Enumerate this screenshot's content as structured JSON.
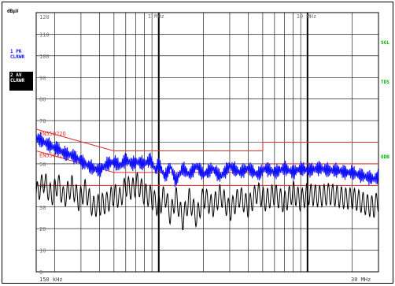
{
  "left_panel": {
    "unit": "dBµV",
    "trace1_number": "1 PK",
    "trace1_mode": "CLRWR",
    "trace2_number": "2 AV",
    "trace2_mode": "CLRWR"
  },
  "right_flags": {
    "sgl": "SGL",
    "tds": "TDS",
    "sixdb": "6DB"
  },
  "x_axis": {
    "start_label": "150 kHz",
    "stop_label": "30 MHz",
    "marker_labels": [
      {
        "label": "1 MHz",
        "freq_mhz": 1
      },
      {
        "label": "10 MHz",
        "freq_mhz": 10
      }
    ]
  },
  "y_axis": {
    "ticks": [
      "120",
      "110",
      "100",
      "90",
      "80",
      "70",
      "60",
      "50",
      "40",
      "30",
      "20",
      "10",
      "0"
    ]
  },
  "limit_labels": [
    "EN55022Q",
    "EN55022A"
  ],
  "colors": {
    "trace1": "#1010ff",
    "trace2": "#000000",
    "limit": "#e03030",
    "grid": "#000000",
    "flags": "#00b400"
  },
  "chart_data": {
    "type": "line",
    "xscale": "log",
    "xlim_mhz": [
      0.15,
      30
    ],
    "ylim": [
      0,
      120
    ],
    "series": [
      {
        "name": "1 PK",
        "color": "#1010ff",
        "x": [
          0.15,
          0.17,
          0.19,
          0.21,
          0.23,
          0.26,
          0.29,
          0.32,
          0.36,
          0.4,
          0.45,
          0.5,
          0.55,
          0.6,
          0.66,
          0.72,
          0.8,
          0.88,
          0.95,
          1.0,
          1.1,
          1.2,
          1.3,
          1.45,
          1.6,
          1.8,
          2.0,
          2.3,
          2.6,
          3.0,
          3.5,
          4.0,
          4.6,
          5.2,
          6.0,
          7.0,
          8.0,
          9.0,
          10,
          12,
          14,
          16,
          18,
          20,
          22,
          25,
          28,
          30
        ],
        "y": [
          62,
          60,
          58,
          57,
          55,
          54,
          52,
          50,
          48,
          47,
          50,
          51,
          49,
          52,
          50,
          51,
          50,
          52,
          47,
          50,
          44,
          49,
          42,
          48,
          45,
          49,
          45,
          48,
          44,
          49,
          46,
          48,
          45,
          48,
          46,
          48,
          46,
          48,
          47,
          48,
          47,
          47,
          46,
          46,
          45,
          44,
          43,
          44
        ]
      },
      {
        "name": "2 AV",
        "color": "#000000",
        "x": [
          0.15,
          0.17,
          0.19,
          0.21,
          0.23,
          0.26,
          0.29,
          0.32,
          0.36,
          0.4,
          0.45,
          0.5,
          0.55,
          0.6,
          0.66,
          0.72,
          0.8,
          0.88,
          0.95,
          1.0,
          1.1,
          1.2,
          1.3,
          1.45,
          1.6,
          1.8,
          2.0,
          2.3,
          2.6,
          3.0,
          3.5,
          4.0,
          4.6,
          5.2,
          6.0,
          7.0,
          8.0,
          9.0,
          10,
          12,
          14,
          16,
          18,
          20,
          22,
          25,
          28,
          30
        ],
        "y": [
          36,
          42,
          35,
          41,
          34,
          40,
          33,
          38,
          30,
          31,
          32,
          36,
          34,
          40,
          38,
          41,
          36,
          35,
          32,
          30,
          36,
          26,
          35,
          24,
          34,
          25,
          35,
          30,
          36,
          28,
          35,
          30,
          37,
          33,
          36,
          32,
          37,
          33,
          36,
          35,
          36,
          35,
          34,
          34,
          33,
          31,
          30,
          33
        ]
      }
    ],
    "limit_lines": [
      {
        "name": "EN55022Q",
        "x": [
          0.15,
          0.5,
          0.5,
          5,
          5,
          30
        ],
        "y": [
          66,
          56,
          56,
          56,
          60,
          60
        ]
      },
      {
        "name": "EN55022A",
        "x": [
          0.15,
          0.5,
          0.5,
          5,
          5,
          30
        ],
        "y": [
          56,
          46,
          46,
          46,
          50,
          50
        ]
      }
    ],
    "reference_lines": [
      {
        "y": 40
      }
    ],
    "grid": true
  }
}
